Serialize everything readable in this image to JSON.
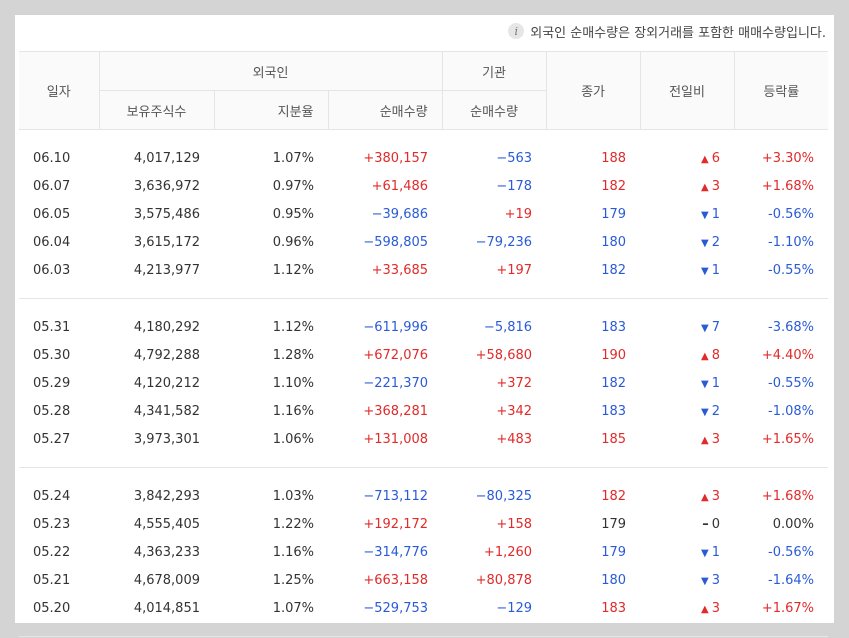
{
  "notice": {
    "icon": "info-icon",
    "text": "외국인 순매수량은 장외거래를 포함한 매매수량입니다."
  },
  "headers": {
    "date": "일자",
    "foreign": "외국인",
    "institution": "기관",
    "close": "종가",
    "change": "전일비",
    "rate": "등락률",
    "held_shares": "보유주식수",
    "holding_ratio": "지분율",
    "foreign_net": "순매수량",
    "inst_net": "순매수량"
  },
  "colors": {
    "up": "#e12a2a",
    "down": "#2a5bd7",
    "neutral": "#333333"
  },
  "groups": [
    [
      {
        "date": "06.10",
        "held": "4,017,129",
        "ratio": "1.07%",
        "fnet": "+380,157",
        "inet": "−563",
        "close": "188",
        "dir": "up",
        "chg": "6",
        "rate": "+3.30%"
      },
      {
        "date": "06.07",
        "held": "3,636,972",
        "ratio": "0.97%",
        "fnet": "+61,486",
        "inet": "−178",
        "close": "182",
        "dir": "up",
        "chg": "3",
        "rate": "+1.68%"
      },
      {
        "date": "06.05",
        "held": "3,575,486",
        "ratio": "0.95%",
        "fnet": "−39,686",
        "inet": "+19",
        "close": "179",
        "dir": "down",
        "chg": "1",
        "rate": "-0.56%"
      },
      {
        "date": "06.04",
        "held": "3,615,172",
        "ratio": "0.96%",
        "fnet": "−598,805",
        "inet": "−79,236",
        "close": "180",
        "dir": "down",
        "chg": "2",
        "rate": "-1.10%"
      },
      {
        "date": "06.03",
        "held": "4,213,977",
        "ratio": "1.12%",
        "fnet": "+33,685",
        "inet": "+197",
        "close": "182",
        "dir": "down",
        "chg": "1",
        "rate": "-0.55%"
      }
    ],
    [
      {
        "date": "05.31",
        "held": "4,180,292",
        "ratio": "1.12%",
        "fnet": "−611,996",
        "inet": "−5,816",
        "close": "183",
        "dir": "down",
        "chg": "7",
        "rate": "-3.68%"
      },
      {
        "date": "05.30",
        "held": "4,792,288",
        "ratio": "1.28%",
        "fnet": "+672,076",
        "inet": "+58,680",
        "close": "190",
        "dir": "up",
        "chg": "8",
        "rate": "+4.40%"
      },
      {
        "date": "05.29",
        "held": "4,120,212",
        "ratio": "1.10%",
        "fnet": "−221,370",
        "inet": "+372",
        "close": "182",
        "dir": "down",
        "chg": "1",
        "rate": "-0.55%"
      },
      {
        "date": "05.28",
        "held": "4,341,582",
        "ratio": "1.16%",
        "fnet": "+368,281",
        "inet": "+342",
        "close": "183",
        "dir": "down",
        "chg": "2",
        "rate": "-1.08%"
      },
      {
        "date": "05.27",
        "held": "3,973,301",
        "ratio": "1.06%",
        "fnet": "+131,008",
        "inet": "+483",
        "close": "185",
        "dir": "up",
        "chg": "3",
        "rate": "+1.65%"
      }
    ],
    [
      {
        "date": "05.24",
        "held": "3,842,293",
        "ratio": "1.03%",
        "fnet": "−713,112",
        "inet": "−80,325",
        "close": "182",
        "dir": "up",
        "chg": "3",
        "rate": "+1.68%"
      },
      {
        "date": "05.23",
        "held": "4,555,405",
        "ratio": "1.22%",
        "fnet": "+192,172",
        "inet": "+158",
        "close": "179",
        "dir": "flat",
        "chg": "0",
        "rate": "0.00%"
      },
      {
        "date": "05.22",
        "held": "4,363,233",
        "ratio": "1.16%",
        "fnet": "−314,776",
        "inet": "+1,260",
        "close": "179",
        "dir": "down",
        "chg": "1",
        "rate": "-0.56%"
      },
      {
        "date": "05.21",
        "held": "4,678,009",
        "ratio": "1.25%",
        "fnet": "+663,158",
        "inet": "+80,878",
        "close": "180",
        "dir": "down",
        "chg": "3",
        "rate": "-1.64%"
      },
      {
        "date": "05.20",
        "held": "4,014,851",
        "ratio": "1.07%",
        "fnet": "−529,753",
        "inet": "−129",
        "close": "183",
        "dir": "up",
        "chg": "3",
        "rate": "+1.67%"
      }
    ]
  ]
}
